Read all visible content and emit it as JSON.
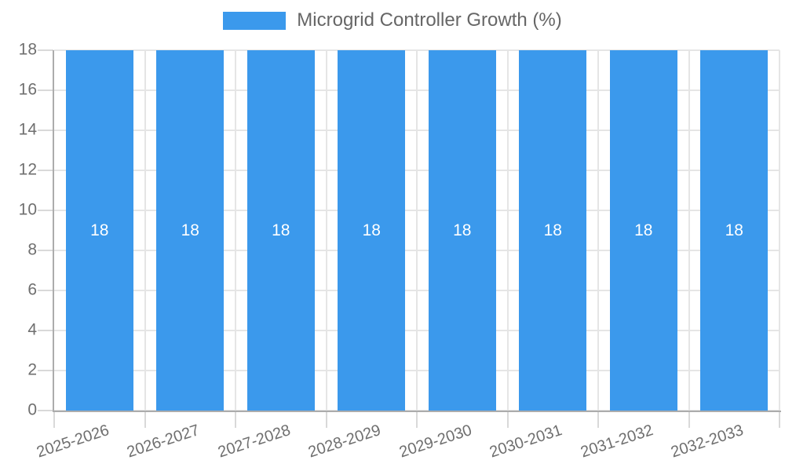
{
  "legend": {
    "label": "Microgrid Controller Growth (%)"
  },
  "chart_data": {
    "type": "bar",
    "title": "Microgrid Controller Growth (%)",
    "categories": [
      "2025-2026",
      "2026-2027",
      "2027-2028",
      "2028-2029",
      "2029-2030",
      "2030-2031",
      "2031-2032",
      "2032-2033"
    ],
    "series": [
      {
        "name": "Microgrid Controller Growth (%)",
        "values": [
          18,
          18,
          18,
          18,
          18,
          18,
          18,
          18
        ]
      }
    ],
    "value_labels": [
      "18",
      "18",
      "18",
      "18",
      "18",
      "18",
      "18",
      "18"
    ],
    "xlabel": "",
    "ylabel": "",
    "ylim": [
      0,
      18
    ],
    "yticks": [
      0,
      2,
      4,
      6,
      8,
      10,
      12,
      14,
      16,
      18
    ],
    "grid": true,
    "legend_position": "top",
    "colors": {
      "bar": "#3B99EC",
      "value_label": "#FFFFFF",
      "grid_line": "#E5E5E5",
      "tick_mark": "#D9D9D9",
      "axis_line": "#ACACAC",
      "axis_text": "#6F6F6F",
      "legend_text": "#666666",
      "background": "#FFFFFF"
    }
  }
}
